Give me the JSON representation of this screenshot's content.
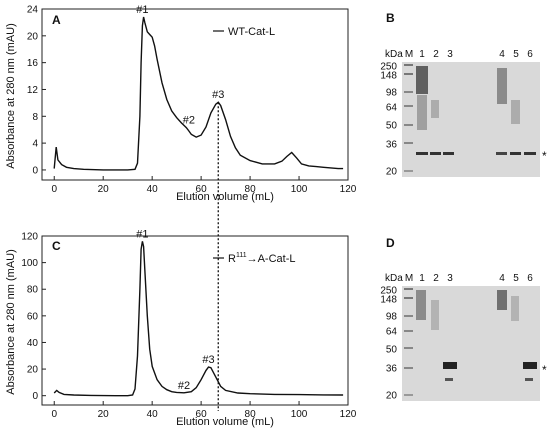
{
  "panels": {
    "A": {
      "letter": "A",
      "legend": "WT-Cat-L"
    },
    "C": {
      "letter": "C",
      "legend_prefix": "R",
      "legend_sup": "111",
      "legend_suffix": "→A-Cat-L"
    },
    "B": {
      "letter": "B"
    },
    "D": {
      "letter": "D"
    }
  },
  "gel": {
    "unit_label": "kDa",
    "ladder": [
      "250",
      "148",
      "98",
      "64",
      "50",
      "36",
      "20"
    ],
    "lane_labels": [
      "M",
      "1",
      "2",
      "3",
      "4",
      "5",
      "6"
    ],
    "marker": "*"
  },
  "colors": {
    "line": "#111111",
    "gel_bg": "#d8d8d8",
    "band": "#2b2b2b"
  },
  "chart_data": [
    {
      "type": "line",
      "panel": "A",
      "title": "",
      "xlabel": "Elution volume (mL)",
      "ylabel": "Absorbance at 280 nm (mAU)",
      "xlim": [
        -5,
        120
      ],
      "ylim": [
        -1.5,
        24
      ],
      "xticks": [
        0,
        20,
        40,
        60,
        80,
        100,
        120
      ],
      "yticks": [
        0,
        4,
        8,
        12,
        16,
        20,
        24
      ],
      "series": [
        {
          "name": "WT-Cat-L",
          "x": [
            0,
            0.8,
            1.5,
            3,
            5,
            8,
            12,
            20,
            30,
            33,
            34,
            35,
            35.5,
            36,
            36.5,
            37,
            38,
            39,
            40,
            41,
            42,
            44,
            46,
            48,
            50,
            52,
            54,
            55,
            56,
            58,
            60,
            62,
            64,
            66,
            67,
            68,
            70,
            72,
            74,
            76,
            80,
            85,
            90,
            93,
            95,
            97,
            99,
            101,
            104,
            107,
            110,
            113,
            116,
            118
          ],
          "y": [
            0.2,
            3.4,
            1.5,
            0.8,
            0.4,
            0.2,
            0.1,
            0,
            0,
            0.1,
            1,
            8,
            16,
            21.5,
            22.8,
            22,
            20.6,
            20.2,
            19.8,
            18.5,
            16.5,
            13,
            10.5,
            8.8,
            7.8,
            7,
            6.3,
            5.8,
            5.3,
            4.9,
            5.2,
            6.4,
            8.5,
            9.8,
            10.1,
            9.6,
            7.5,
            5,
            3.3,
            2.2,
            1.4,
            0.9,
            0.9,
            1.3,
            2,
            2.6,
            1.8,
            0.9,
            0.6,
            0.5,
            0.4,
            0.3,
            0.2,
            0.2
          ]
        }
      ],
      "annotations": [
        {
          "text": "#1",
          "x": 36,
          "y": 22.8
        },
        {
          "text": "#2",
          "x": 55,
          "y": 6.3
        },
        {
          "text": "#3",
          "x": 67,
          "y": 10.1
        }
      ]
    },
    {
      "type": "line",
      "panel": "C",
      "title": "",
      "xlabel": "Elution volume (mL)",
      "ylabel": "Absorbance at 280 nm (mAU)",
      "xlim": [
        -5,
        120
      ],
      "ylim": [
        -7,
        120
      ],
      "xticks": [
        0,
        20,
        40,
        60,
        80,
        100,
        120
      ],
      "yticks": [
        0,
        20,
        40,
        60,
        80,
        100,
        120
      ],
      "series": [
        {
          "name": "R111→A-Cat-L",
          "x": [
            0,
            1,
            2,
            4,
            8,
            15,
            25,
            30,
            32,
            33,
            34,
            35,
            35.5,
            36,
            36.5,
            37,
            38,
            39,
            40,
            42,
            44,
            46,
            48,
            50,
            53,
            56,
            58,
            60,
            62,
            63,
            64,
            66,
            68,
            70,
            75,
            80,
            90,
            100,
            110,
            118
          ],
          "y": [
            2,
            4,
            2.5,
            1,
            0.5,
            0.2,
            0,
            0,
            0.5,
            5,
            30,
            80,
            110,
            116,
            112,
            95,
            60,
            35,
            22,
            12,
            7,
            4.5,
            3,
            2.5,
            2.2,
            3,
            6,
            12,
            19,
            21.5,
            21,
            14,
            7,
            4,
            2,
            1.5,
            1,
            0.8,
            0.6,
            0.5
          ]
        }
      ],
      "annotations": [
        {
          "text": "#1",
          "x": 36,
          "y": 116
        },
        {
          "text": "#2",
          "x": 53,
          "y": 2.2
        },
        {
          "text": "#3",
          "x": 63,
          "y": 21.5
        }
      ]
    }
  ]
}
